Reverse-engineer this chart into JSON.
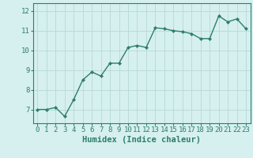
{
  "x": [
    0,
    1,
    2,
    3,
    4,
    5,
    6,
    7,
    8,
    9,
    10,
    11,
    12,
    13,
    14,
    15,
    16,
    17,
    18,
    19,
    20,
    21,
    22,
    23
  ],
  "y": [
    7.0,
    7.0,
    7.1,
    6.65,
    7.5,
    8.5,
    8.9,
    8.7,
    9.35,
    9.35,
    10.15,
    10.25,
    10.15,
    11.15,
    11.1,
    11.0,
    10.95,
    10.85,
    10.6,
    10.6,
    11.75,
    11.45,
    11.6,
    11.1
  ],
  "line_color": "#2e7d6e",
  "marker": "D",
  "marker_size": 2.2,
  "bg_color": "#d6f0ef",
  "grid_color": "#b8d8d8",
  "axis_color": "#2e7d6e",
  "tick_color": "#2e7d6e",
  "xlabel": "Humidex (Indice chaleur)",
  "xlabel_color": "#2e7d6e",
  "xlabel_fontsize": 7.5,
  "ylim": [
    6.3,
    12.4
  ],
  "xlim": [
    -0.5,
    23.5
  ],
  "yticks": [
    7,
    8,
    9,
    10,
    11,
    12
  ],
  "xticks": [
    0,
    1,
    2,
    3,
    4,
    5,
    6,
    7,
    8,
    9,
    10,
    11,
    12,
    13,
    14,
    15,
    16,
    17,
    18,
    19,
    20,
    21,
    22,
    23
  ],
  "tick_fontsize": 6.5,
  "line_width": 1.0
}
